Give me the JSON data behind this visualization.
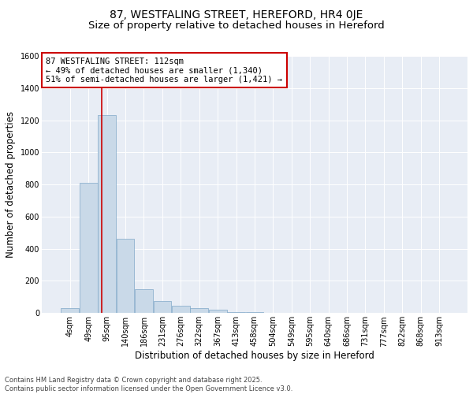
{
  "title": "87, WESTFALING STREET, HEREFORD, HR4 0JE",
  "subtitle": "Size of property relative to detached houses in Hereford",
  "xlabel": "Distribution of detached houses by size in Hereford",
  "ylabel": "Number of detached properties",
  "bin_labels": [
    "4sqm",
    "49sqm",
    "95sqm",
    "140sqm",
    "186sqm",
    "231sqm",
    "276sqm",
    "322sqm",
    "367sqm",
    "413sqm",
    "458sqm",
    "504sqm",
    "549sqm",
    "595sqm",
    "640sqm",
    "686sqm",
    "731sqm",
    "777sqm",
    "822sqm",
    "868sqm",
    "913sqm"
  ],
  "bar_heights": [
    30,
    810,
    1230,
    460,
    150,
    75,
    45,
    30,
    20,
    8,
    4,
    2,
    1,
    1,
    0,
    0,
    0,
    0,
    0,
    0,
    0
  ],
  "bar_color": "#c9d9e8",
  "bar_edge_color": "#7fa8c8",
  "vline_color": "#cc0000",
  "vline_x": 1.72,
  "annotation_text": "87 WESTFALING STREET: 112sqm\n← 49% of detached houses are smaller (1,340)\n51% of semi-detached houses are larger (1,421) →",
  "annotation_box_facecolor": "#ffffff",
  "annotation_box_edgecolor": "#cc0000",
  "ylim": [
    0,
    1600
  ],
  "yticks": [
    0,
    200,
    400,
    600,
    800,
    1000,
    1200,
    1400,
    1600
  ],
  "plot_bg_color": "#e8edf5",
  "footer_text": "Contains HM Land Registry data © Crown copyright and database right 2025.\nContains public sector information licensed under the Open Government Licence v3.0.",
  "title_fontsize": 10,
  "subtitle_fontsize": 9.5,
  "xlabel_fontsize": 8.5,
  "ylabel_fontsize": 8.5,
  "tick_fontsize": 7,
  "annotation_fontsize": 7.5,
  "footer_fontsize": 6
}
